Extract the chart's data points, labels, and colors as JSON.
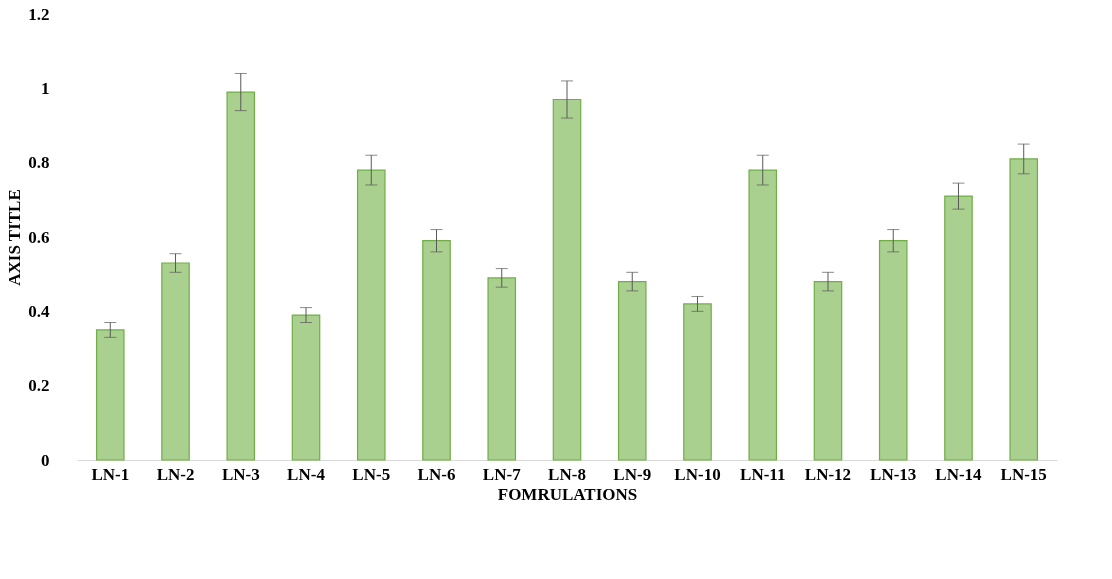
{
  "chart_data": {
    "type": "bar",
    "xlabel": "FOMRULATIONS",
    "ylabel": "AXIS TITLE",
    "categories": [
      "LN-1",
      "LN-2",
      "LN-3",
      "LN-4",
      "LN-5",
      "LN-6",
      "LN-7",
      "LN-8",
      "LN-9",
      "LN-10",
      "LN-11",
      "LN-12",
      "LN-13",
      "LN-14",
      "LN-15"
    ],
    "values": [
      0.35,
      0.53,
      0.99,
      0.39,
      0.78,
      0.59,
      0.49,
      0.97,
      0.48,
      0.42,
      0.78,
      0.48,
      0.59,
      0.71,
      0.81
    ],
    "errors": [
      0.02,
      0.025,
      0.05,
      0.02,
      0.04,
      0.03,
      0.025,
      0.05,
      0.025,
      0.02,
      0.04,
      0.025,
      0.03,
      0.035,
      0.04
    ],
    "color": "#a9d08e",
    "ylim": [
      0,
      1.2
    ],
    "yticks": [
      0,
      0.2,
      0.4,
      0.6,
      0.8,
      1,
      1.2
    ],
    "grid": false
  }
}
